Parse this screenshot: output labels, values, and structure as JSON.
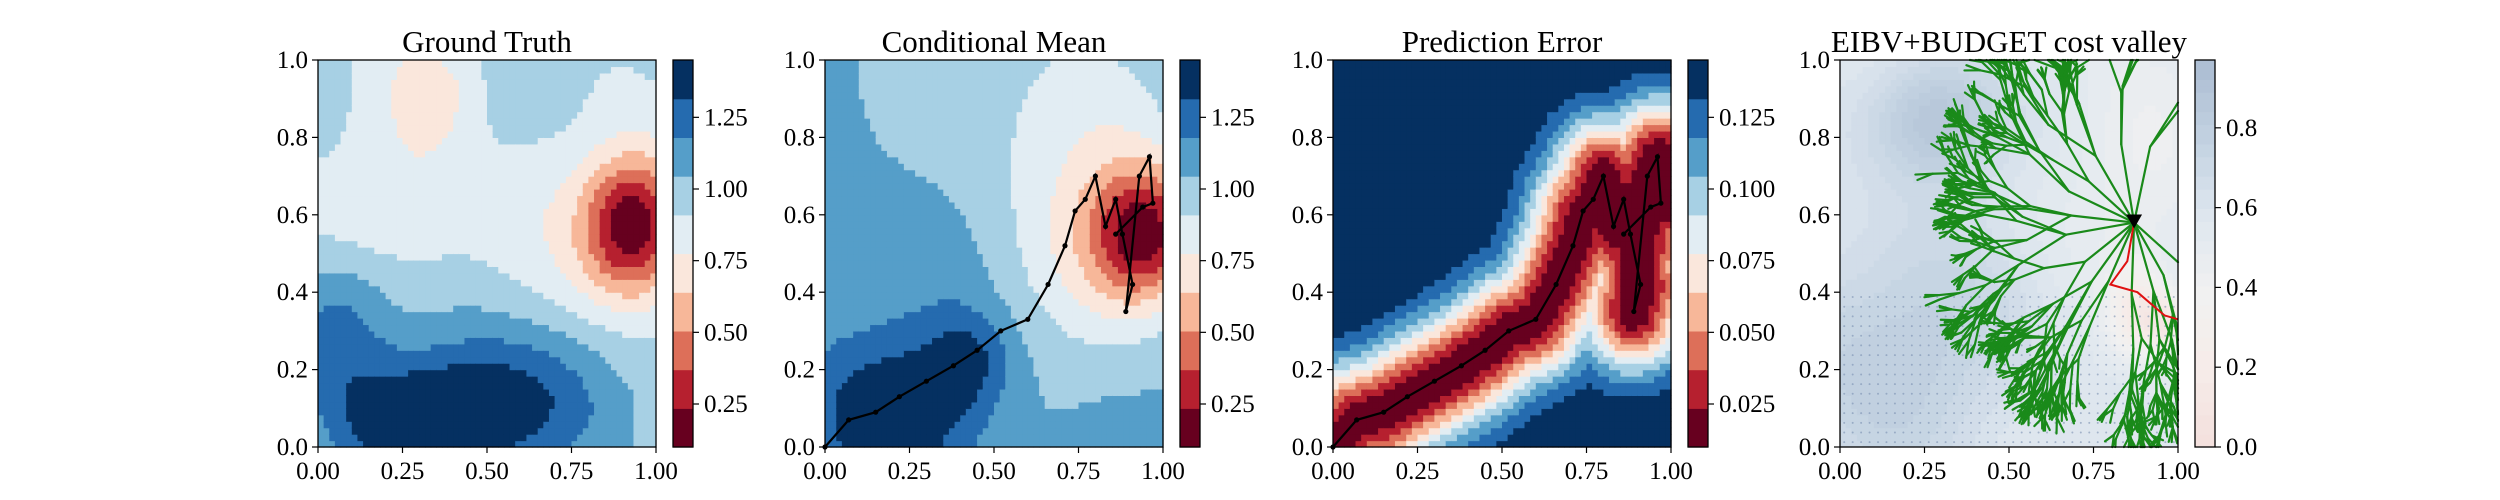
{
  "chart_data": [
    {
      "type": "heatmap",
      "title": "Ground Truth",
      "xlabel": "",
      "ylabel": "",
      "xlim": [
        0,
        1
      ],
      "ylim": [
        0,
        1
      ],
      "x_ticks": [
        "0.00",
        "0.25",
        "0.50",
        "0.75",
        "1.00"
      ],
      "y_ticks": [
        "0.0",
        "0.2",
        "0.4",
        "0.6",
        "0.8",
        "1.0"
      ],
      "colormap": "RdBu",
      "colorbar": {
        "range": [
          0.1,
          1.45
        ],
        "ticks": [
          "0.25",
          "0.50",
          "0.75",
          "1.00",
          "1.25"
        ]
      },
      "field": {
        "base": 0.95,
        "bumps": [
          {
            "x": 0.93,
            "y": 0.57,
            "sx": 0.11,
            "sy": 0.13,
            "a": -0.85
          },
          {
            "x": 0.33,
            "y": 0.92,
            "sx": 0.1,
            "sy": 0.1,
            "a": -0.25
          },
          {
            "x": 0.25,
            "y": 0.62,
            "sx": 0.22,
            "sy": 0.12,
            "a": -0.18
          },
          {
            "x": 0.3,
            "y": 0.05,
            "sx": 0.18,
            "sy": 0.12,
            "a": 0.45
          },
          {
            "x": 0.58,
            "y": 0.12,
            "sx": 0.2,
            "sy": 0.14,
            "a": 0.38
          },
          {
            "x": 0.05,
            "y": 0.3,
            "sx": 0.12,
            "sy": 0.15,
            "a": 0.3
          },
          {
            "x": 0.65,
            "y": 0.6,
            "sx": 0.1,
            "sy": 0.18,
            "a": -0.08
          }
        ]
      },
      "path": [],
      "overlay": null
    },
    {
      "type": "heatmap",
      "title": "Conditional Mean",
      "xlabel": "",
      "ylabel": "",
      "xlim": [
        0,
        1
      ],
      "ylim": [
        0,
        1
      ],
      "x_ticks": [
        "0.00",
        "0.25",
        "0.50",
        "0.75",
        "1.00"
      ],
      "y_ticks": [
        "0.0",
        "0.2",
        "0.4",
        "0.6",
        "0.8",
        "1.0"
      ],
      "colormap": "RdBu",
      "colorbar": {
        "range": [
          0.1,
          1.45
        ],
        "ticks": [
          "0.25",
          "0.50",
          "0.75",
          "1.00",
          "1.25"
        ]
      },
      "field": {
        "base": 1.08,
        "bumps": [
          {
            "x": 0.95,
            "y": 0.55,
            "sx": 0.12,
            "sy": 0.13,
            "a": -0.85
          },
          {
            "x": 0.2,
            "y": 0.08,
            "sx": 0.18,
            "sy": 0.16,
            "a": 0.35
          },
          {
            "x": 0.42,
            "y": 0.22,
            "sx": 0.09,
            "sy": 0.09,
            "a": 0.25
          },
          {
            "x": 0.75,
            "y": 0.62,
            "sx": 0.18,
            "sy": 0.3,
            "a": -0.25
          },
          {
            "x": 0.6,
            "y": 0.9,
            "sx": 0.25,
            "sy": 0.15,
            "a": -0.1
          }
        ]
      },
      "path": [
        [
          0.0,
          0.0
        ],
        [
          0.07,
          0.07
        ],
        [
          0.15,
          0.09
        ],
        [
          0.22,
          0.13
        ],
        [
          0.3,
          0.17
        ],
        [
          0.38,
          0.21
        ],
        [
          0.45,
          0.25
        ],
        [
          0.52,
          0.3
        ],
        [
          0.6,
          0.33
        ],
        [
          0.66,
          0.42
        ],
        [
          0.71,
          0.52
        ],
        [
          0.74,
          0.61
        ],
        [
          0.77,
          0.64
        ],
        [
          0.8,
          0.7
        ],
        [
          0.83,
          0.57
        ],
        [
          0.86,
          0.64
        ],
        [
          0.88,
          0.55
        ],
        [
          0.91,
          0.42
        ],
        [
          0.89,
          0.35
        ],
        [
          0.93,
          0.7
        ],
        [
          0.96,
          0.75
        ],
        [
          0.97,
          0.63
        ],
        [
          0.94,
          0.62
        ],
        [
          0.86,
          0.55
        ]
      ],
      "overlay": null
    },
    {
      "type": "heatmap",
      "title": "Prediction Error",
      "xlabel": "",
      "ylabel": "",
      "xlim": [
        0,
        1
      ],
      "ylim": [
        0,
        1
      ],
      "x_ticks": [
        "0.00",
        "0.25",
        "0.50",
        "0.75",
        "1.00"
      ],
      "y_ticks": [
        "0.0",
        "0.2",
        "0.4",
        "0.6",
        "0.8",
        "1.0"
      ],
      "colormap": "RdBu",
      "colorbar": {
        "range": [
          0.01,
          0.145
        ],
        "ticks": [
          "0.025",
          "0.050",
          "0.075",
          "0.100",
          "0.125"
        ]
      },
      "field": {
        "mode": "path_distance",
        "min": 0.012,
        "max": 0.145,
        "scale": 0.22
      },
      "path": [
        [
          0.0,
          0.0
        ],
        [
          0.07,
          0.07
        ],
        [
          0.15,
          0.09
        ],
        [
          0.22,
          0.13
        ],
        [
          0.3,
          0.17
        ],
        [
          0.38,
          0.21
        ],
        [
          0.45,
          0.25
        ],
        [
          0.52,
          0.3
        ],
        [
          0.6,
          0.33
        ],
        [
          0.66,
          0.42
        ],
        [
          0.71,
          0.52
        ],
        [
          0.74,
          0.61
        ],
        [
          0.77,
          0.64
        ],
        [
          0.8,
          0.7
        ],
        [
          0.83,
          0.57
        ],
        [
          0.86,
          0.64
        ],
        [
          0.88,
          0.55
        ],
        [
          0.91,
          0.42
        ],
        [
          0.89,
          0.35
        ],
        [
          0.93,
          0.7
        ],
        [
          0.96,
          0.75
        ],
        [
          0.97,
          0.63
        ],
        [
          0.94,
          0.62
        ],
        [
          0.86,
          0.55
        ]
      ],
      "overlay": null
    },
    {
      "type": "heatmap",
      "title": "EIBV+BUDGET cost valley",
      "xlabel": "",
      "ylabel": "",
      "xlim": [
        0,
        1
      ],
      "ylim": [
        0,
        1
      ],
      "x_ticks": [
        "0.00",
        "0.25",
        "0.50",
        "0.75",
        "1.00"
      ],
      "y_ticks": [
        "0.0",
        "0.2",
        "0.4",
        "0.6",
        "0.8",
        "1.0"
      ],
      "colormap": "BuRd_light",
      "colorbar": {
        "range": [
          0.0,
          0.97
        ],
        "ticks": [
          "0.0",
          "0.2",
          "0.4",
          "0.6",
          "0.8"
        ]
      },
      "field": {
        "base": 0.55,
        "bumps": [
          {
            "x": 0.28,
            "y": 0.85,
            "sx": 0.14,
            "sy": 0.12,
            "a": 0.35
          },
          {
            "x": 0.15,
            "y": 0.25,
            "sx": 0.3,
            "sy": 0.25,
            "a": 0.25
          },
          {
            "x": 0.88,
            "y": 0.35,
            "sx": 0.06,
            "sy": 0.08,
            "a": -0.35
          },
          {
            "x": 0.98,
            "y": 0.32,
            "sx": 0.05,
            "sy": 0.05,
            "a": -0.35
          },
          {
            "x": 0.9,
            "y": 0.7,
            "sx": 0.15,
            "sy": 0.2,
            "a": -0.1
          }
        ]
      },
      "path": [],
      "overlay": {
        "tree_color": "#1a8a1a",
        "tree_root": [
          0.87,
          0.58
        ],
        "marker": "triangle-down",
        "marker_at": [
          0.87,
          0.58
        ],
        "red_path": [
          [
            0.87,
            0.58
          ],
          [
            0.85,
            0.48
          ],
          [
            0.8,
            0.42
          ],
          [
            0.88,
            0.4
          ],
          [
            0.96,
            0.34
          ],
          [
            1.0,
            0.33
          ]
        ],
        "red_color": "#e01010",
        "grid_points": true
      }
    }
  ]
}
